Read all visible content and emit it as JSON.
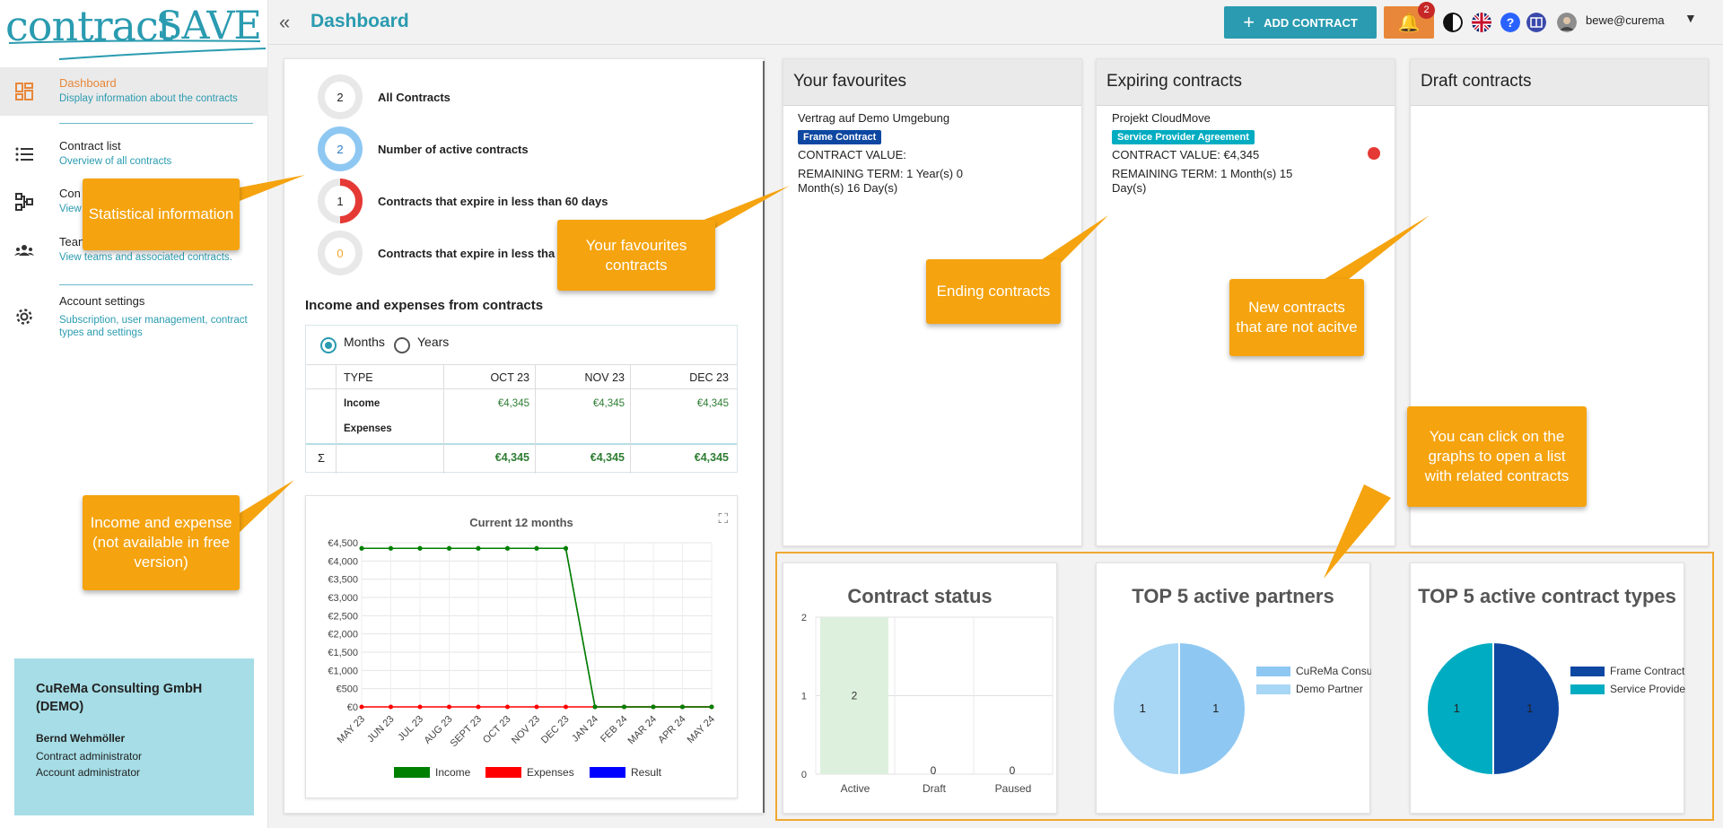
{
  "logo": {
    "part1": "contract",
    "part2": "SAVE"
  },
  "sidebar": {
    "items": [
      {
        "label": "Dashboard",
        "sub": "Display information about the contracts"
      },
      {
        "label": "Contract list",
        "sub": "Overview of all contracts"
      },
      {
        "label": "Con",
        "sub": "View"
      },
      {
        "label": "Tean",
        "sub": "View teams and associated contracts."
      },
      {
        "label": "Account settings",
        "sub": "Subscription, user management, contract types and settings"
      }
    ],
    "company": {
      "name": "CuReMa Consulting GmbH (DEMO)",
      "user": "Bernd Wehmöller",
      "roles": [
        "Contract administrator",
        "Account administrator"
      ]
    }
  },
  "topbar": {
    "title": "Dashboard",
    "add_label": "ADD CONTRACT",
    "notifications": "2",
    "user": "bewe@curema"
  },
  "stats": [
    {
      "value": "2",
      "label": "All Contracts"
    },
    {
      "value": "2",
      "label": "Number of active contracts"
    },
    {
      "value": "1",
      "label": "Contracts that expire in less than 60 days"
    },
    {
      "value": "0",
      "label": "Contracts that expire in less tha"
    }
  ],
  "income": {
    "title": "Income and expenses from contracts",
    "radio": [
      "Months",
      "Years"
    ],
    "headers": [
      "TYPE",
      "OCT 23",
      "NOV 23",
      "DEC 23"
    ],
    "rows": [
      {
        "type": "Income",
        "values": [
          "€4,345",
          "€4,345",
          "€4,345"
        ]
      },
      {
        "type": "Expenses",
        "values": [
          "",
          "",
          ""
        ]
      }
    ],
    "sigma": "Σ",
    "totals": [
      "€4,345",
      "€4,345",
      "€4,345"
    ]
  },
  "chart_data": [
    {
      "type": "line",
      "title": "Current 12 months",
      "x": [
        "MAY 23",
        "JUN 23",
        "JUL 23",
        "AUG 23",
        "SEPT 23",
        "OCT 23",
        "NOV 23",
        "DEC 23",
        "JAN 24",
        "FEB 24",
        "MAR 24",
        "APR 24",
        "MAY 24"
      ],
      "y_ticks": [
        "€0",
        "€500",
        "€1,000",
        "€1,500",
        "€2,000",
        "€2,500",
        "€3,000",
        "€3,500",
        "€4,000",
        "€4,500"
      ],
      "ylim": [
        0,
        4500
      ],
      "series": [
        {
          "name": "Income",
          "color": "#008000",
          "values": [
            4345,
            4345,
            4345,
            4345,
            4345,
            4345,
            4345,
            4345,
            0,
            0,
            0,
            0,
            0
          ]
        },
        {
          "name": "Expenses",
          "color": "#ff0000",
          "values": [
            0,
            0,
            0,
            0,
            0,
            0,
            0,
            0,
            0,
            0,
            0,
            0,
            0
          ]
        },
        {
          "name": "Result",
          "color": "#0000ff",
          "values": [
            4345,
            4345,
            4345,
            4345,
            4345,
            4345,
            4345,
            4345,
            0,
            0,
            0,
            0,
            0
          ]
        }
      ]
    },
    {
      "type": "bar",
      "title": "Contract status",
      "categories": [
        "Active",
        "Draft",
        "Paused"
      ],
      "values": [
        2,
        0,
        0
      ],
      "ylim": [
        0,
        2
      ],
      "y_ticks": [
        "0",
        "1",
        "2"
      ]
    },
    {
      "type": "pie",
      "title": "TOP 5 active partners",
      "labels": [
        "CuReMa Consulti",
        "Demo Partner"
      ],
      "values": [
        1,
        1
      ],
      "colors": [
        "#8ec8f2",
        "#a8d6f5"
      ]
    },
    {
      "type": "pie",
      "title": "TOP 5 active contract types",
      "labels": [
        "Frame Contract",
        "Service Provider ."
      ],
      "values": [
        1,
        1
      ],
      "colors": [
        "#0d47a1",
        "#00acc1"
      ]
    }
  ],
  "favourites": {
    "title": "Your favourites",
    "name": "Vertrag auf Demo Umgebung",
    "tag": "Frame Contract",
    "value": "CONTRACT VALUE:",
    "term1": "REMAINING TERM: 1 Year(s) 0",
    "term2": "Month(s) 16 Day(s)"
  },
  "expiring": {
    "title": "Expiring contracts",
    "name": "Projekt CloudMove",
    "tag": "Service Provider Agreement",
    "value": "CONTRACT VALUE: €4,345",
    "term1": "REMAINING TERM: 1 Month(s) 15",
    "term2": "Day(s)"
  },
  "drafts": {
    "title": "Draft contracts"
  },
  "callouts": {
    "stats": "Statistical information",
    "favourites": "Your favourites contracts",
    "ending": "Ending contracts",
    "new": "New contracts that are not acitve",
    "graphs": "You can click on the graphs to open a list with related contracts",
    "income": "Income and expense (not available in free version)"
  },
  "colors": {
    "accent": "#2a9bb0",
    "orange": "#e8873a",
    "callout": "#f5a30e"
  }
}
